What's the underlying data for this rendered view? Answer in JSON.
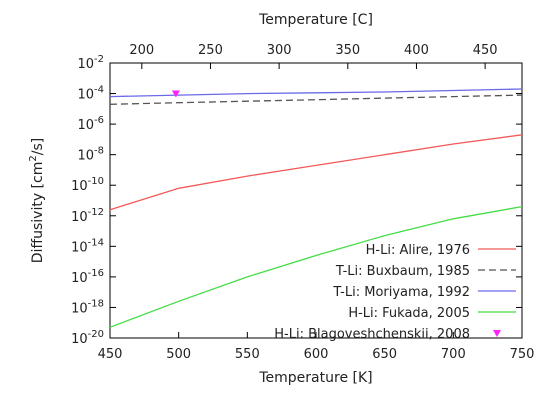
{
  "chart_data": {
    "type": "line",
    "xlabel": "Temperature [K]",
    "x2label": "Temperature [C]",
    "ylabel": "Diffusivity [cm",
    "ylabel_sup": "2",
    "ylabel_tail": "/s]",
    "xlim": [
      450,
      750
    ],
    "ylim_log10": [
      -20,
      -2
    ],
    "yscale": "log",
    "x_ticks": [
      "450",
      "500",
      "550",
      "600",
      "650",
      "700",
      "750"
    ],
    "x_tick_values": [
      450,
      500,
      550,
      600,
      650,
      700,
      750
    ],
    "x2_ticks": [
      "200",
      "250",
      "300",
      "350",
      "400",
      "450"
    ],
    "x2_tick_values": [
      200,
      250,
      300,
      350,
      400,
      450
    ],
    "y_tick_base": "10",
    "y_tick_exponents": [
      "-2",
      "-4",
      "-6",
      "-8",
      "-10",
      "-12",
      "-14",
      "-16",
      "-18",
      "-20"
    ],
    "y_tick_exp_values": [
      -2,
      -4,
      -6,
      -8,
      -10,
      -12,
      -14,
      -16,
      -18,
      -20
    ],
    "grid": false,
    "legend_position": "bottom-right",
    "series": [
      {
        "name": "H-Li: Alire, 1976",
        "color": "#f25a5a",
        "style": "solid",
        "x": [
          450,
          500,
          550,
          600,
          650,
          700,
          750
        ],
        "y_log10": [
          -11.6,
          -10.2,
          -9.4,
          -8.7,
          -8.0,
          -7.3,
          -6.7
        ]
      },
      {
        "name": "T-Li: Buxbaum, 1985",
        "color": "#555555",
        "style": "dashed",
        "x": [
          450,
          500,
          550,
          600,
          650,
          700,
          750
        ],
        "y_log10": [
          -4.7,
          -4.6,
          -4.5,
          -4.4,
          -4.3,
          -4.2,
          -4.1
        ]
      },
      {
        "name": "T-Li: Moriyama, 1992",
        "color": "#6a6ae6",
        "style": "solid",
        "x": [
          450,
          500,
          550,
          600,
          650,
          700,
          750
        ],
        "y_log10": [
          -4.2,
          -4.1,
          -4.0,
          -3.95,
          -3.9,
          -3.8,
          -3.7
        ]
      },
      {
        "name": "H-Li: Fukada, 2005",
        "color": "#44dd44",
        "style": "solid",
        "x": [
          450,
          500,
          550,
          600,
          650,
          700,
          750
        ],
        "y_log10": [
          -19.3,
          -17.6,
          -16.0,
          -14.6,
          -13.3,
          -12.2,
          -11.4
        ]
      },
      {
        "name": "H-Li: Blagoveshchenskii, 2008",
        "color": "#ff22ff",
        "style": "marker",
        "x": [
          498
        ],
        "y_log10": [
          -4.0
        ]
      }
    ]
  }
}
